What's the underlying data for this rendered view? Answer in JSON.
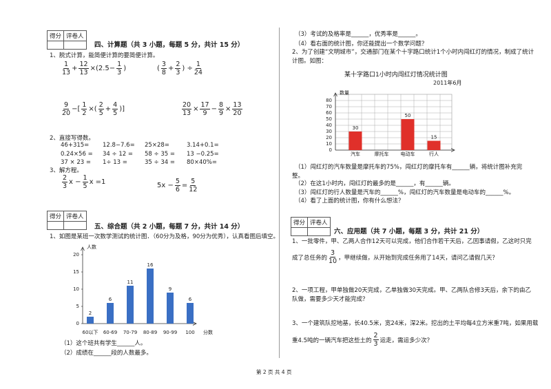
{
  "sec4": {
    "score": [
      "得分",
      "评卷人"
    ],
    "title": "四、计算题（共 3 小题，每题 5 分，共计 15 分）",
    "q1": {
      "prompt": "1、脱式计算，能简便计算的要简便计算。",
      "exprs": [
        [
          {
            "num": "1",
            "den": "13"
          },
          "+",
          {
            "num": "12",
            "den": "13"
          },
          "×(2.5−",
          {
            "num": "1",
            "den": "3"
          },
          ")"
        ],
        [
          "(",
          {
            "num": "3",
            "den": "8"
          },
          "+",
          {
            "num": "2",
            "den": "3"
          },
          ") ÷",
          {
            "num": "1",
            "den": "24"
          }
        ],
        [
          {
            "num": "9",
            "den": "20"
          },
          "−[",
          {
            "num": "1",
            "den": "2"
          },
          "×(",
          {
            "num": "2",
            "den": "5"
          },
          "+",
          {
            "num": "4",
            "den": "5"
          },
          ")]"
        ],
        [
          {
            "num": "20",
            "den": "13"
          },
          "×",
          {
            "num": "17",
            "den": "9"
          },
          "−",
          {
            "num": "8",
            "den": "9"
          },
          "×",
          {
            "num": "13",
            "den": "20"
          }
        ]
      ]
    },
    "q2": {
      "prompt": "2、直接写得数。",
      "rows": [
        [
          "46+315=",
          "12.8−7.6=",
          "25×28=",
          "3.14+0.1="
        ],
        [
          "0.24×56 =",
          "34 ÷ 12 =",
          "58 ÷ 35 =",
          "13 −0.25="
        ],
        [
          "37 × 23 =",
          "1÷ 13 =",
          "35 ÷ 34 =",
          "80×40%="
        ]
      ]
    },
    "q3": {
      "prompt": "3、解方程。",
      "eqs": [
        [
          {
            "num": "2",
            "den": "3"
          },
          "x −",
          {
            "num": "1",
            "den": "5"
          },
          "x =1"
        ],
        [
          "5x −",
          {
            "num": "5",
            "den": "6"
          },
          "=",
          {
            "num": "5",
            "den": "12"
          }
        ]
      ]
    }
  },
  "sec5": {
    "score": [
      "得分",
      "评卷人"
    ],
    "title": "五、综合题（共 2 小题，每题 7 分，共计 14 分）",
    "q1": {
      "prompt": "1、如图是某班一次数学测试的统计图．（60分为及格，90分为优秀），认真看图后填空。",
      "items": [
        "（1）这个班共有学生______人。",
        "（2）成绩在______段的人数最多。",
        "（3）考试的及格率是______，优秀率是______。",
        "（4）看右面的统计图，你还能提出一个数学问题？"
      ]
    },
    "q2": {
      "prompt": [
        "2、为了创建“文明城市”，交通部门在某个十字路口统计1个小时内闯红灯的情况，制成了统计",
        "计图。如图："
      ],
      "items": [
        "（1）闯红灯的汽车数量是摩托车的75%，闯红灯的摩托车有______辆，将统计图补充完",
        "整。",
        "（2）在这1小时内，闯红灯的最多的是______，有______辆。",
        "（3）闯红灯的行人数量是汽车的______%，闯红灯的汽车数量是电动车的______%。",
        "（4）看了上面的统计图，你有什么想法？"
      ]
    }
  },
  "sec6": {
    "score": [
      "得分",
      "评卷人"
    ],
    "title": "六、应用题（共 7 小题，每题 3 分，共计 21 分）",
    "q1": [
      "1、一批零件，甲、乙两人合作12天可以完成，他们合作若干天后，乙因事请假，乙这时只完",
      [
        "成了总任务的",
        {
          "num": "3",
          "den": "10"
        },
        "，甲继续做，从开始到完成任务用了14天，请问乙请假几天？"
      ]
    ],
    "q2": [
      "2、一项工程，甲单独做20天完成，乙单独做30天完成。甲、乙两队合修3天后，余下的由乙",
      "队做，需要多少天才能完成？"
    ],
    "q3": [
      "3、一个建筑队挖地基，长40.5米，宽24米，深2米。挖出的土平均每4立方米重7吨，如果用载",
      [
        "重4.5吨的一辆汽车把这些土的",
        {
          "num": "2",
          "den": "3"
        },
        "运走，需运多少次？"
      ]
    ]
  },
  "footer": "第 2 页 共 4 页",
  "chart_data": [
    {
      "type": "bar",
      "y_label": "人数",
      "x_label": "分数",
      "categories": [
        "60以下",
        "60-69",
        "70-79",
        "80-89",
        "90-99",
        "100"
      ],
      "values": [
        2,
        6,
        11,
        16,
        9,
        6
      ],
      "color": "#3a6fc4",
      "ylim": [
        0,
        20
      ],
      "yticks": [
        0,
        5,
        10,
        15,
        20
      ],
      "grid": false
    },
    {
      "type": "bar",
      "title": "某十字路口1小时内闯红灯情况统计图",
      "subtitle": "2011年6月",
      "y_label": "数量",
      "categories": [
        "汽车",
        "摩托车",
        "电动车",
        "行人"
      ],
      "values": [
        30,
        null,
        50,
        15
      ],
      "color": "#e0302a",
      "ylim": [
        0,
        80
      ],
      "yticks": [
        0,
        10,
        20,
        30,
        40,
        50,
        60,
        70,
        80
      ],
      "grid": true
    }
  ]
}
